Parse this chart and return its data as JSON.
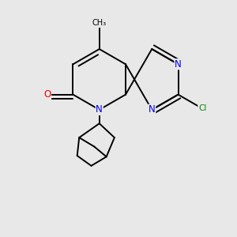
{
  "bg": "#e8e8e8",
  "bond_color": "#000000",
  "N_color": "#0000ee",
  "O_color": "#ee0000",
  "Cl_color": "#008800",
  "lw": 1.4,
  "dbo": 0.018,
  "fs": 8.5
}
